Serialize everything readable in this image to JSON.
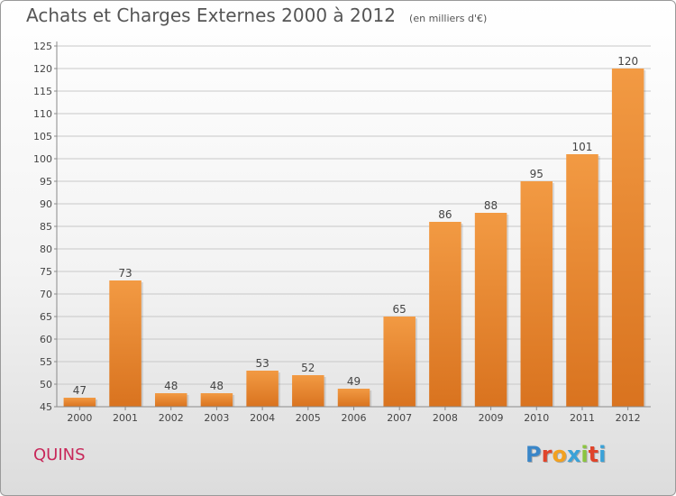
{
  "title": "Achats et Charges Externes 2000 à 2012",
  "unit": "(en milliers d'€)",
  "town": "QUINS",
  "logo": {
    "text": "Proxiti",
    "letter_colors": [
      "#3a86c8",
      "#e0442a",
      "#f2a120",
      "#3aa2d8",
      "#8bc53f",
      "#e0442a",
      "#3aa2d8"
    ]
  },
  "chart_data": {
    "type": "bar",
    "categories": [
      "2000",
      "2001",
      "2002",
      "2003",
      "2004",
      "2005",
      "2006",
      "2007",
      "2008",
      "2009",
      "2010",
      "2011",
      "2012"
    ],
    "values": [
      47,
      73,
      48,
      48,
      53,
      52,
      49,
      65,
      86,
      88,
      95,
      101,
      120
    ],
    "yticks": [
      45,
      50,
      55,
      60,
      65,
      70,
      75,
      80,
      85,
      90,
      95,
      100,
      105,
      110,
      115,
      120,
      125
    ],
    "ylim": [
      45,
      125
    ],
    "grid": true,
    "bar_color": "#f29a43",
    "bar_color_dark": "#d9731f",
    "grid_color": "#c8c8c8",
    "axis_color": "#8a8a8a"
  }
}
